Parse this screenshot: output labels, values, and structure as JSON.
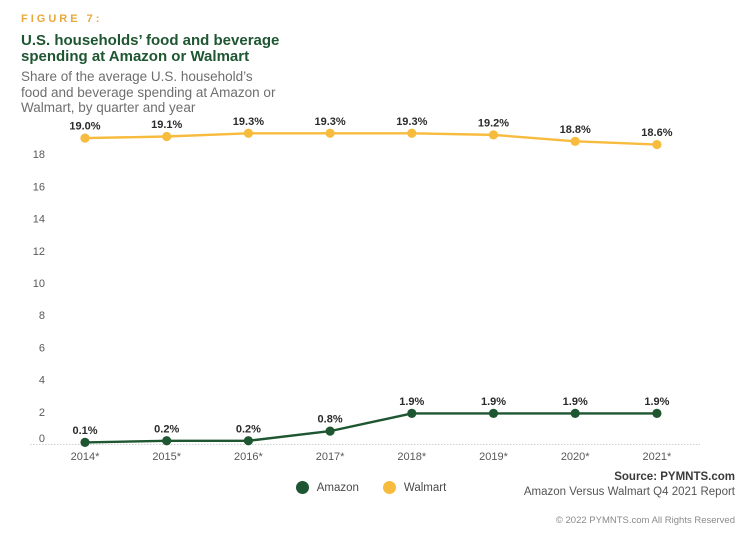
{
  "header": {
    "figure_label": "FIGURE 7:",
    "title_line1": "U.S. households’ food and beverage",
    "title_line2": "spending at Amazon or Walmart",
    "subtitle": "Share of the average U.S. household’s\nfood and beverage spending at Amazon or\nWalmart, by quarter and year"
  },
  "colors": {
    "accent_gold": "#E9A83B",
    "amazon_green": "#1E5631",
    "walmart_gold": "#F7BB3D"
  },
  "chart_data": {
    "type": "line",
    "categories": [
      "2014*",
      "2015*",
      "2016*",
      "2017*",
      "2018*",
      "2019*",
      "2020*",
      "2021*"
    ],
    "series": [
      {
        "name": "Amazon",
        "color": "#1E5631",
        "values": [
          0.1,
          0.2,
          0.2,
          0.8,
          1.9,
          1.9,
          1.9,
          1.9
        ]
      },
      {
        "name": "Walmart",
        "color": "#F7BB3D",
        "values": [
          19.0,
          19.1,
          19.3,
          19.3,
          19.3,
          19.2,
          18.8,
          18.6
        ]
      }
    ],
    "data_label_format": "percent_one_decimal",
    "y_axis": {
      "min": 0,
      "max": 18,
      "step": 2
    },
    "grid": false,
    "legend_position": "bottom-center",
    "title": "U.S. households’ food and beverage spending at Amazon or Walmart",
    "xlabel": "",
    "ylabel": ""
  },
  "footer": {
    "source_label": "Source: PYMNTS.com",
    "source_detail": "Amazon Versus Walmart Q4 2021 Report",
    "copyright": "© 2022 PYMNTS.com All Rights Reserved"
  }
}
